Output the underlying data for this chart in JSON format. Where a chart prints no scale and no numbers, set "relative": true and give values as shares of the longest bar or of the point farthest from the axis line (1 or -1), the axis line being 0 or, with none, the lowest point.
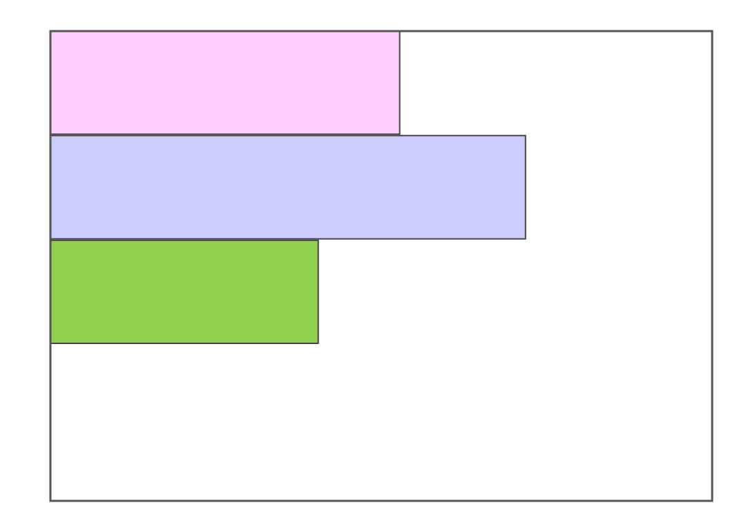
{
  "chart_data": {
    "type": "bar",
    "orientation": "horizontal",
    "relative": true,
    "categories": [
      null,
      null,
      null
    ],
    "values": [
      0.736,
      1,
      0.565
    ],
    "colors": [
      "#ffccff",
      "#ccccff",
      "#92d050"
    ]
  }
}
